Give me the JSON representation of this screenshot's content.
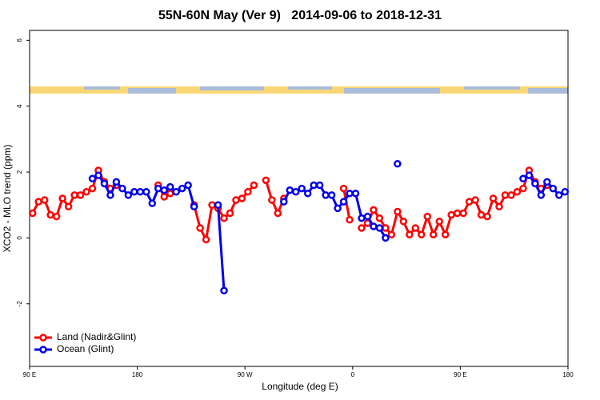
{
  "chart_data": {
    "type": "line",
    "title": "55N-60N May (Ver 9)   2014-09-06 to 2018-12-31",
    "x_label": "Longitude (deg E)",
    "y_label": "XCO2 - MLO trend (ppm)",
    "xlim": [
      90,
      540
    ],
    "ylim": [
      -3.9,
      6.3
    ],
    "xticks": [
      {
        "value": 90,
        "label": "90 E"
      },
      {
        "value": 180,
        "label": "180"
      },
      {
        "value": 270,
        "label": "90 W"
      },
      {
        "value": 360,
        "label": "0"
      },
      {
        "value": 450,
        "label": "90 E"
      },
      {
        "value": 540,
        "label": "180"
      }
    ],
    "yticks": [
      -2,
      0,
      2,
      4,
      6
    ],
    "legend": "bottomleft",
    "x": [
      92.5,
      97.5,
      102.5,
      107.5,
      112.5,
      117.5,
      122.5,
      127.5,
      132.5,
      137.5,
      142.5,
      147.5,
      152.5,
      157.5,
      162.5,
      167.5,
      172.5,
      177.5,
      182.5,
      187.5,
      192.5,
      197.5,
      202.5,
      207.5,
      212.5,
      217.5,
      222.5,
      227.5,
      232.5,
      237.5,
      242.5,
      247.5,
      252.5,
      257.5,
      262.5,
      267.5,
      272.5,
      277.5,
      282.5,
      287.5,
      292.5,
      297.5,
      302.5,
      307.5,
      312.5,
      317.5,
      322.5,
      327.5,
      332.5,
      337.5,
      342.5,
      347.5,
      352.5,
      357.5,
      362.5,
      367.5,
      372.5,
      377.5,
      382.5,
      387.5,
      392.5,
      397.5,
      402.5,
      407.5,
      412.5,
      417.5,
      422.5,
      427.5,
      432.5,
      437.5,
      442.5,
      447.5,
      452.5,
      457.5,
      462.5,
      467.5,
      472.5,
      477.5,
      482.5,
      487.5,
      492.5,
      497.5,
      502.5,
      507.5,
      512.5,
      517.5,
      522.5,
      527.5,
      532.5,
      537.5
    ],
    "series": [
      {
        "name": "Land (Nadir&Glint)",
        "color": "#ff0000",
        "values": [
          0.75,
          1.1,
          1.15,
          0.7,
          0.65,
          1.2,
          0.95,
          1.3,
          1.3,
          1.4,
          1.5,
          2.05,
          1.7,
          1.5,
          1.6,
          null,
          null,
          null,
          null,
          null,
          null,
          1.6,
          1.25,
          1.35,
          null,
          null,
          null,
          1.0,
          0.3,
          -0.05,
          1.0,
          0.9,
          0.6,
          0.75,
          1.15,
          1.2,
          1.4,
          1.6,
          null,
          1.75,
          1.15,
          0.75,
          1.2,
          null,
          null,
          null,
          null,
          null,
          null,
          null,
          null,
          null,
          1.5,
          0.55,
          null,
          0.3,
          0.45,
          0.85,
          0.6,
          0.3,
          0.1,
          0.8,
          0.5,
          0.1,
          0.3,
          0.1,
          0.65,
          0.1,
          0.5,
          0.1,
          0.7,
          0.75,
          0.75,
          1.1,
          1.15,
          0.7,
          0.65,
          1.2,
          0.95,
          1.3,
          1.3,
          1.4,
          1.5,
          2.05,
          1.7,
          1.5,
          1.6,
          null,
          null,
          null
        ]
      },
      {
        "name": "Ocean (Glint)",
        "color": "#0000ee",
        "values": [
          null,
          null,
          null,
          null,
          null,
          null,
          null,
          null,
          null,
          null,
          1.8,
          1.9,
          1.65,
          1.3,
          1.7,
          1.5,
          1.3,
          1.4,
          1.4,
          1.4,
          1.05,
          1.5,
          1.45,
          1.55,
          1.4,
          1.5,
          1.6,
          0.95,
          null,
          null,
          null,
          1.0,
          -1.6,
          null,
          null,
          null,
          null,
          null,
          null,
          null,
          null,
          null,
          1.1,
          1.45,
          1.4,
          1.5,
          1.35,
          1.6,
          1.6,
          1.3,
          1.3,
          0.9,
          1.1,
          1.35,
          1.35,
          0.6,
          0.65,
          0.35,
          0.3,
          0.0,
          null,
          2.25,
          null,
          null,
          null,
          null,
          null,
          null,
          null,
          null,
          null,
          null,
          null,
          null,
          null,
          null,
          null,
          null,
          null,
          null,
          null,
          null,
          1.8,
          1.9,
          1.65,
          1.3,
          1.7,
          1.5,
          1.3,
          1.4
        ]
      }
    ]
  }
}
